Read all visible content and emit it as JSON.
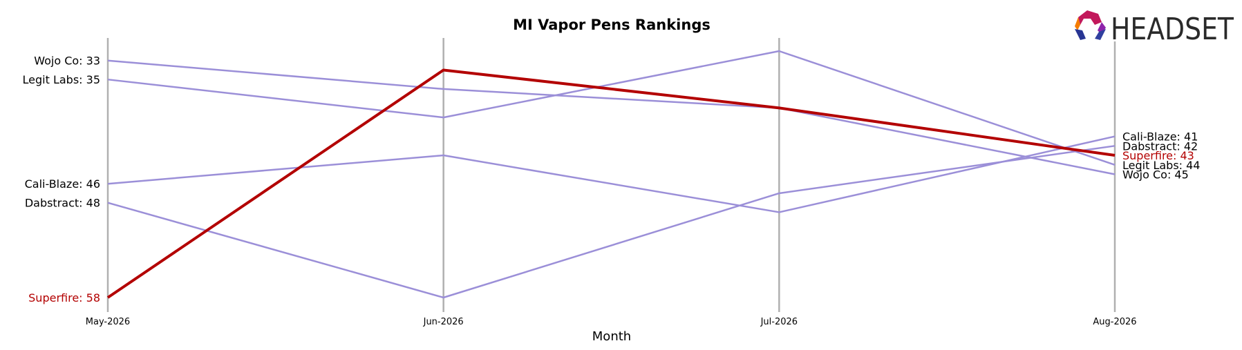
{
  "chart_data": {
    "type": "line",
    "title": "MI Vapor Pens Rankings",
    "xlabel": "Month",
    "ylabel": "",
    "categories": [
      "May-2026",
      "Jun-2026",
      "Jul-2026",
      "Aug-2026"
    ],
    "y_reversed": true,
    "ylim": [
      58,
      31
    ],
    "grid": false,
    "series": [
      {
        "name": "Wojo Co",
        "values": [
          33,
          36,
          38,
          45
        ],
        "color": "#9b8fd8",
        "highlight": false
      },
      {
        "name": "Legit Labs",
        "values": [
          35,
          39,
          32,
          44
        ],
        "color": "#9b8fd8",
        "highlight": false
      },
      {
        "name": "Cali-Blaze",
        "values": [
          46,
          43,
          49,
          41
        ],
        "color": "#9b8fd8",
        "highlight": false
      },
      {
        "name": "Dabstract",
        "values": [
          48,
          58,
          47,
          42
        ],
        "color": "#9b8fd8",
        "highlight": false
      },
      {
        "name": "Superfire",
        "values": [
          58,
          34,
          38,
          43
        ],
        "color": "#b30000",
        "highlight": true
      }
    ]
  },
  "logo": {
    "text": "HEADSET"
  },
  "colors": {
    "axis_line": "#b0b0b0",
    "series_default": "#9b8fd8",
    "highlight": "#b30000"
  }
}
